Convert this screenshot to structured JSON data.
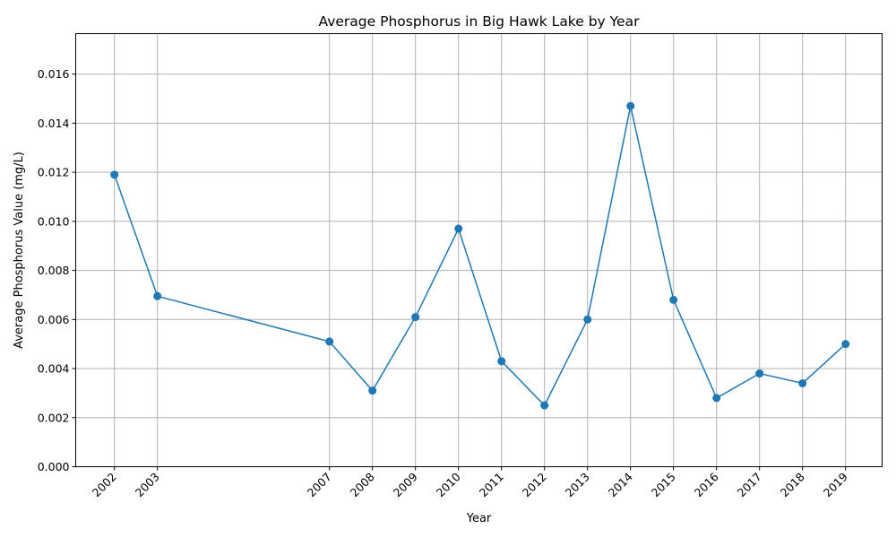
{
  "chart_data": {
    "type": "line",
    "title": "Average Phosphorus in Big Hawk Lake by Year",
    "xlabel": "Year",
    "ylabel": "Average Phosphorus Value (mg/L)",
    "x": [
      2002,
      2003,
      2007,
      2008,
      2009,
      2010,
      2011,
      2012,
      2013,
      2014,
      2015,
      2016,
      2017,
      2018,
      2019
    ],
    "x_tick_labels": [
      "2002",
      "2003",
      "2007",
      "2008",
      "2009",
      "2010",
      "2011",
      "2012",
      "2013",
      "2014",
      "2015",
      "2016",
      "2017",
      "2018",
      "2019"
    ],
    "y_tick_labels": [
      "0.000",
      "0.002",
      "0.004",
      "0.006",
      "0.008",
      "0.010",
      "0.012",
      "0.014",
      "0.016"
    ],
    "y_ticks": [
      0,
      0.002,
      0.004,
      0.006,
      0.008,
      0.01,
      0.012,
      0.014,
      0.016
    ],
    "series": [
      {
        "values": [
          0.0119,
          0.00695,
          0.0051,
          0.0031,
          0.0061,
          0.0097,
          0.0043,
          0.0025,
          0.006,
          0.0147,
          0.0068,
          0.0028,
          0.0038,
          0.0034,
          0.005
        ],
        "color": "#1f77b4",
        "marker": "circle"
      }
    ],
    "xlim": [
      2001.1,
      2019.85
    ],
    "ylim": [
      0,
      0.01765
    ],
    "grid": true
  }
}
